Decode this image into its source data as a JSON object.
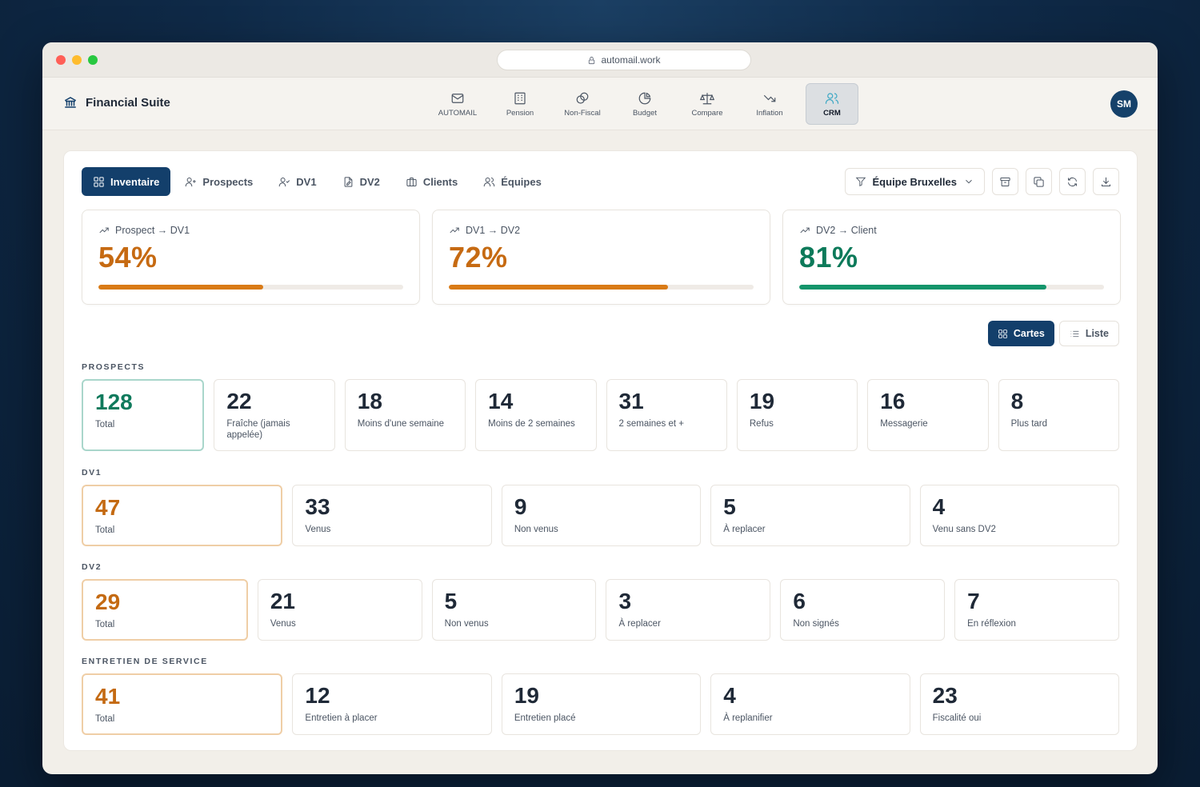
{
  "browser": {
    "url": "automail.work"
  },
  "app": {
    "name": "Financial Suite",
    "avatar": "SM"
  },
  "topnav": [
    {
      "label": "AUTOMAIL",
      "icon": "mail-icon"
    },
    {
      "label": "Pension",
      "icon": "building-icon"
    },
    {
      "label": "Non-Fiscal",
      "icon": "coins-icon"
    },
    {
      "label": "Budget",
      "icon": "pie-chart-icon"
    },
    {
      "label": "Compare",
      "icon": "scale-icon"
    },
    {
      "label": "Inflation",
      "icon": "trending-down-icon"
    },
    {
      "label": "CRM",
      "icon": "users-icon",
      "active": true
    }
  ],
  "tabs": [
    {
      "label": "Inventaire",
      "icon": "grid-icon",
      "active": true
    },
    {
      "label": "Prospects",
      "icon": "user-plus-icon"
    },
    {
      "label": "DV1",
      "icon": "user-check-icon"
    },
    {
      "label": "DV2",
      "icon": "file-edit-icon"
    },
    {
      "label": "Clients",
      "icon": "briefcase-icon"
    },
    {
      "label": "Équipes",
      "icon": "users-icon"
    }
  ],
  "filter": {
    "label": "Équipe Bruxelles"
  },
  "conversions": [
    {
      "label": "Prospect → DV1",
      "value": "54%",
      "progress": 0.54,
      "color": "#c66a12",
      "bar": "#d97a16"
    },
    {
      "label": "DV1 → DV2",
      "value": "72%",
      "progress": 0.72,
      "color": "#c66a12",
      "bar": "#d97a16"
    },
    {
      "label": "DV2 → Client",
      "value": "81%",
      "progress": 0.81,
      "color": "#0d7a5a",
      "bar": "#14956b"
    }
  ],
  "view_toggle": {
    "cards": "Cartes",
    "list": "Liste"
  },
  "sections": {
    "prospects": {
      "title": "PROSPECTS",
      "cards": [
        {
          "value": "128",
          "label": "Total"
        },
        {
          "value": "22",
          "label": "Fraîche (jamais appelée)"
        },
        {
          "value": "18",
          "label": "Moins d'une semaine"
        },
        {
          "value": "14",
          "label": "Moins de 2 semaines"
        },
        {
          "value": "31",
          "label": "2 semaines et +"
        },
        {
          "value": "19",
          "label": "Refus"
        },
        {
          "value": "16",
          "label": "Messagerie"
        },
        {
          "value": "8",
          "label": "Plus tard"
        }
      ]
    },
    "dv1": {
      "title": "DV1",
      "cards": [
        {
          "value": "47",
          "label": "Total"
        },
        {
          "value": "33",
          "label": "Venus"
        },
        {
          "value": "9",
          "label": "Non venus"
        },
        {
          "value": "5",
          "label": "À replacer"
        },
        {
          "value": "4",
          "label": "Venu sans DV2"
        }
      ]
    },
    "dv2": {
      "title": "DV2",
      "cards": [
        {
          "value": "29",
          "label": "Total"
        },
        {
          "value": "21",
          "label": "Venus"
        },
        {
          "value": "5",
          "label": "Non venus"
        },
        {
          "value": "3",
          "label": "À replacer"
        },
        {
          "value": "6",
          "label": "Non signés"
        },
        {
          "value": "7",
          "label": "En réflexion"
        }
      ]
    },
    "entretien": {
      "title": "ENTRETIEN DE SERVICE",
      "cards": [
        {
          "value": "41",
          "label": "Total"
        },
        {
          "value": "12",
          "label": "Entretien à placer"
        },
        {
          "value": "19",
          "label": "Entretien placé"
        },
        {
          "value": "4",
          "label": "À replanifier"
        },
        {
          "value": "23",
          "label": "Fiscalité oui"
        }
      ]
    }
  }
}
